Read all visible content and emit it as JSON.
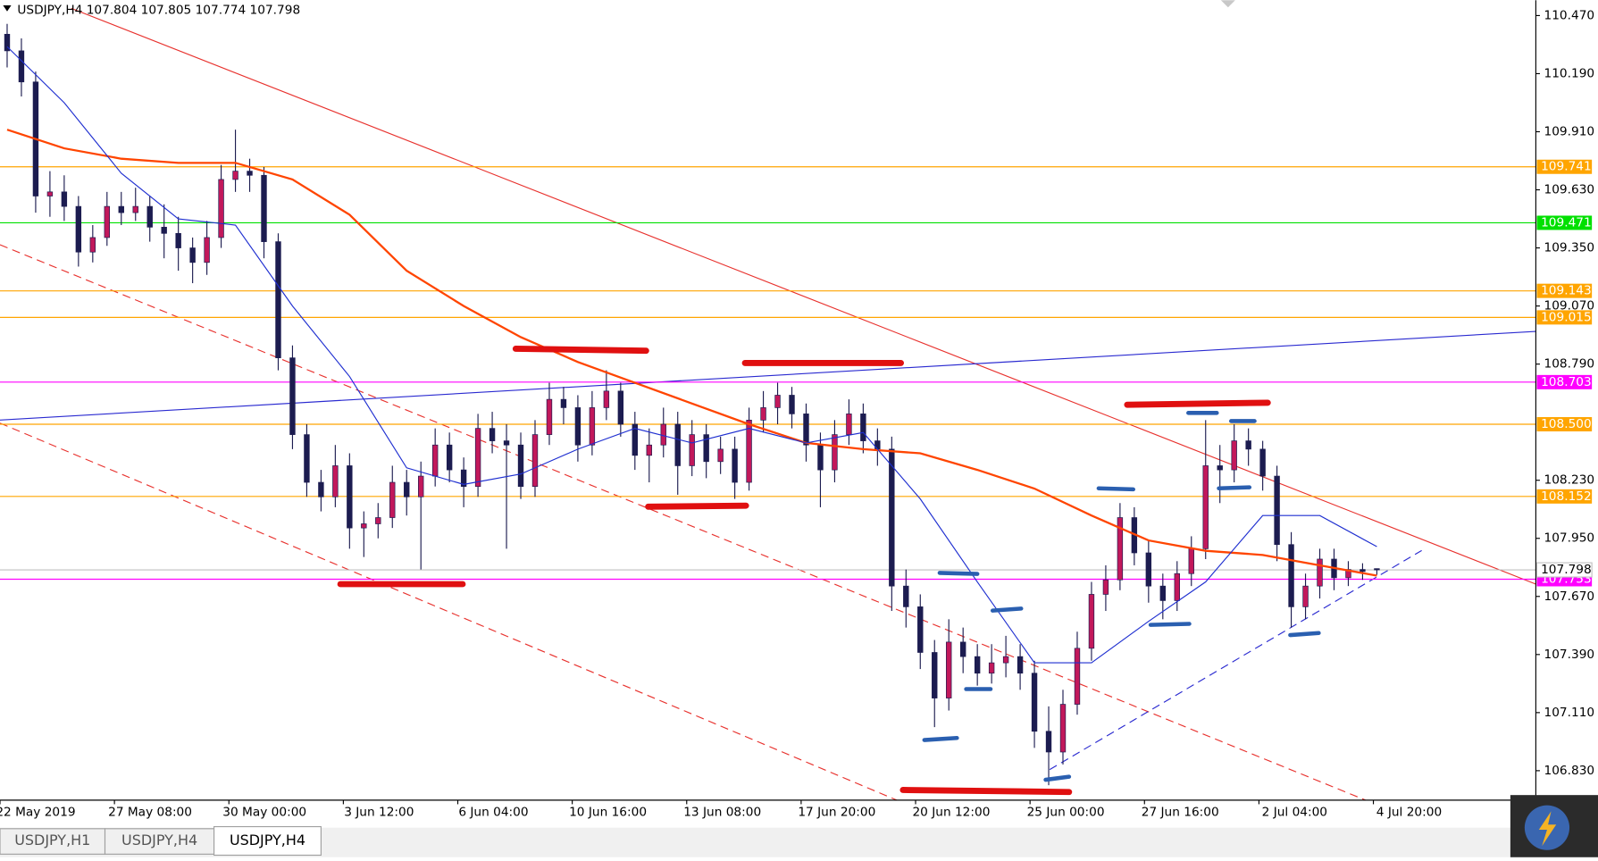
{
  "chart_data": {
    "type": "candlestick",
    "title": "USDJPY,H4  107.804 107.805 107.774 107.798",
    "up_color": "#c2185b",
    "down_color": "#1c1c50",
    "open": [
      110.38,
      110.3,
      110.15,
      109.6,
      109.62,
      109.55,
      109.33,
      109.4,
      109.55,
      109.52,
      109.55,
      109.45,
      109.42,
      109.35,
      109.28,
      109.4,
      109.68,
      109.72,
      109.7,
      109.38,
      108.82,
      108.45,
      108.22,
      108.15,
      108.3,
      108.0,
      108.02,
      108.05,
      108.22,
      108.15,
      108.25,
      108.4,
      108.28,
      108.2,
      108.48,
      108.42,
      108.4,
      108.2,
      108.45,
      108.62,
      108.58,
      108.4,
      108.58,
      108.66,
      108.5,
      108.35,
      108.4,
      108.5,
      108.3,
      108.45,
      108.32,
      108.38,
      108.22,
      108.52,
      108.58,
      108.64,
      108.55,
      108.4,
      108.28,
      108.45,
      108.55,
      108.42,
      108.38,
      107.72,
      107.62,
      107.4,
      107.18,
      107.45,
      107.38,
      107.3,
      107.35,
      107.38,
      107.3,
      107.02,
      106.92,
      107.15,
      107.42,
      107.68,
      107.75,
      108.05,
      107.88,
      107.72,
      107.65,
      107.78,
      107.9,
      108.3,
      108.28,
      108.42,
      108.38,
      108.25,
      107.92,
      107.62,
      107.72,
      107.85,
      107.76,
      107.8,
      107.804
    ],
    "high": [
      110.43,
      110.36,
      110.2,
      109.72,
      109.7,
      109.6,
      109.46,
      109.62,
      109.62,
      109.64,
      109.6,
      109.56,
      109.5,
      109.4,
      109.48,
      109.75,
      109.92,
      109.78,
      109.74,
      109.42,
      108.88,
      108.5,
      108.28,
      108.4,
      108.36,
      108.08,
      108.12,
      108.3,
      108.28,
      108.32,
      108.48,
      108.46,
      108.34,
      108.55,
      108.56,
      108.5,
      108.46,
      108.52,
      108.7,
      108.68,
      108.64,
      108.66,
      108.76,
      108.7,
      108.56,
      108.48,
      108.58,
      108.56,
      108.52,
      108.5,
      108.44,
      108.44,
      108.58,
      108.66,
      108.7,
      108.68,
      108.6,
      108.46,
      108.52,
      108.62,
      108.6,
      108.48,
      108.44,
      107.8,
      107.68,
      107.46,
      107.56,
      107.52,
      107.44,
      107.44,
      107.48,
      107.44,
      107.36,
      107.14,
      107.22,
      107.5,
      107.74,
      107.82,
      108.12,
      108.1,
      107.94,
      107.78,
      107.84,
      107.96,
      108.52,
      108.4,
      108.5,
      108.48,
      108.42,
      108.3,
      107.98,
      107.78,
      107.9,
      107.9,
      107.84,
      107.83,
      107.805
    ],
    "low": [
      110.22,
      110.08,
      109.52,
      109.5,
      109.48,
      109.26,
      109.28,
      109.36,
      109.46,
      109.48,
      109.38,
      109.3,
      109.24,
      109.18,
      109.22,
      109.35,
      109.62,
      109.62,
      109.3,
      108.76,
      108.38,
      108.15,
      108.08,
      108.1,
      107.9,
      107.86,
      107.95,
      108.0,
      108.06,
      107.8,
      108.2,
      108.22,
      108.1,
      108.15,
      108.36,
      107.9,
      108.14,
      108.15,
      108.4,
      108.5,
      108.32,
      108.35,
      108.52,
      108.44,
      108.28,
      108.22,
      108.34,
      108.16,
      108.25,
      108.24,
      108.26,
      108.14,
      108.18,
      108.46,
      108.5,
      108.48,
      108.32,
      108.1,
      108.22,
      108.4,
      108.36,
      108.3,
      107.6,
      107.52,
      107.32,
      107.04,
      107.12,
      107.3,
      107.24,
      107.25,
      107.28,
      107.22,
      106.94,
      106.76,
      106.86,
      107.1,
      107.36,
      107.6,
      107.7,
      107.82,
      107.64,
      107.56,
      107.6,
      107.72,
      107.85,
      108.12,
      108.22,
      108.3,
      108.18,
      107.84,
      107.52,
      107.56,
      107.66,
      107.7,
      107.72,
      107.75,
      107.774
    ],
    "close": [
      110.3,
      110.15,
      109.6,
      109.62,
      109.55,
      109.33,
      109.4,
      109.55,
      109.52,
      109.55,
      109.45,
      109.42,
      109.35,
      109.28,
      109.4,
      109.68,
      109.72,
      109.7,
      109.38,
      108.82,
      108.45,
      108.22,
      108.15,
      108.3,
      108.0,
      108.02,
      108.05,
      108.22,
      108.15,
      108.25,
      108.4,
      108.28,
      108.2,
      108.48,
      108.42,
      108.4,
      108.2,
      108.45,
      108.62,
      108.58,
      108.4,
      108.58,
      108.66,
      108.5,
      108.35,
      108.4,
      108.5,
      108.3,
      108.45,
      108.32,
      108.38,
      108.22,
      108.52,
      108.58,
      108.64,
      108.55,
      108.4,
      108.28,
      108.45,
      108.55,
      108.42,
      108.38,
      107.72,
      107.62,
      107.4,
      107.18,
      107.45,
      107.38,
      107.3,
      107.35,
      107.38,
      107.3,
      107.02,
      106.92,
      107.15,
      107.42,
      107.68,
      107.75,
      108.05,
      107.88,
      107.72,
      107.65,
      107.78,
      107.9,
      108.3,
      108.28,
      108.42,
      108.38,
      108.25,
      107.92,
      107.62,
      107.72,
      107.85,
      107.76,
      107.8,
      107.79,
      107.798
    ],
    "series": [
      {
        "color": "#ff4500",
        "values": [
          109.92,
          109.83,
          109.78,
          109.76,
          109.76,
          109.68,
          109.51,
          109.24,
          109.07,
          108.92,
          108.8,
          108.7,
          108.6,
          108.5,
          108.41,
          108.38,
          108.36,
          108.28,
          108.19,
          108.06,
          107.94,
          107.89,
          107.87,
          107.82,
          107.77
        ]
      },
      {
        "color": "#1f2fd0",
        "values": [
          110.32,
          110.05,
          109.71,
          109.49,
          109.46,
          109.07,
          108.73,
          108.29,
          108.21,
          108.26,
          108.38,
          108.48,
          108.41,
          108.48,
          108.41,
          108.46,
          108.14,
          107.74,
          107.35,
          107.35,
          107.55,
          107.74,
          108.06,
          108.06,
          107.91
        ]
      }
    ],
    "ylim": [
      106.688,
      110.544
    ],
    "yticks": [
      {
        "value": 110.47,
        "label": "110.470"
      },
      {
        "value": 110.19,
        "label": "110.190"
      },
      {
        "value": 109.91,
        "label": "109.910"
      },
      {
        "value": 109.63,
        "label": "109.630"
      },
      {
        "value": 109.35,
        "label": "109.350"
      },
      {
        "value": 109.07,
        "label": "109.070"
      },
      {
        "value": 108.79,
        "label": "108.790"
      },
      {
        "value": 108.23,
        "label": "108.230"
      },
      {
        "value": 107.95,
        "label": "107.950"
      },
      {
        "value": 107.67,
        "label": "107.670"
      },
      {
        "value": 107.39,
        "label": "107.390"
      },
      {
        "value": 107.11,
        "label": "107.110"
      },
      {
        "value": 106.83,
        "label": "106.830"
      }
    ],
    "levels": [
      {
        "value": 109.741,
        "color": "#ffa500"
      },
      {
        "value": 109.471,
        "color": "#00e000"
      },
      {
        "value": 109.143,
        "color": "#ffa500"
      },
      {
        "value": 109.015,
        "color": "#ffa500"
      },
      {
        "value": 108.703,
        "color": "#ff00ff"
      },
      {
        "value": 108.5,
        "label": "108.500",
        "color": "#ffa500"
      },
      {
        "value": 108.152,
        "color": "#ffa500"
      },
      {
        "value": 107.753,
        "color": "#ff00ff"
      }
    ],
    "current_price": {
      "value": 107.798,
      "color": "#c0c0c0"
    },
    "x_labels": [
      "22 May 2019",
      "27 May 08:00",
      "30 May 00:00",
      "3 Jun 12:00",
      "6 Jun 04:00",
      "10 Jun 16:00",
      "13 Jun 08:00",
      "17 Jun 20:00",
      "20 Jun 12:00",
      "25 Jun 00:00",
      "27 Jun 16:00",
      "2 Jul 04:00",
      "4 Jul 20:00"
    ],
    "tabs": [
      "USDJPY,H1",
      "USDJPY,H4",
      "USDJPY,H4"
    ]
  }
}
